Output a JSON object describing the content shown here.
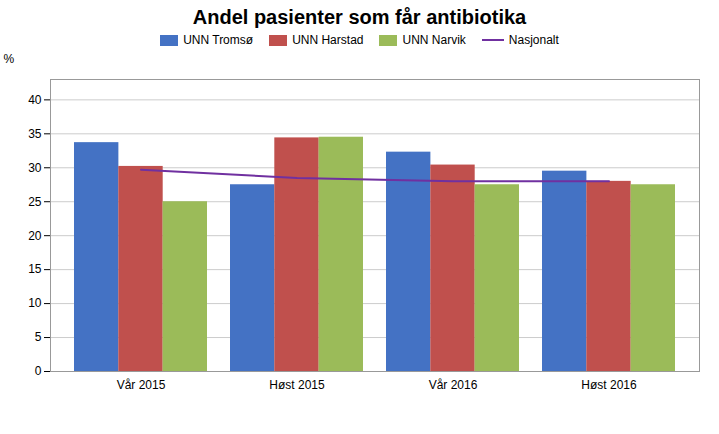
{
  "chart_data": {
    "type": "bar",
    "title": "Andel pasienter som får antibiotika",
    "categories": [
      "Vår 2015",
      "Høst 2015",
      "Vår 2016",
      "Høst 2016"
    ],
    "series": [
      {
        "name": "UNN Tromsø",
        "color": "#4472C4",
        "values": [
          33.7,
          27.5,
          32.3,
          29.5
        ]
      },
      {
        "name": "UNN Harstad",
        "color": "#C0504D",
        "values": [
          30.2,
          34.4,
          30.4,
          28.0
        ]
      },
      {
        "name": "UNN Narvik",
        "color": "#9BBB59",
        "values": [
          25.0,
          34.5,
          27.5,
          27.5
        ]
      },
      {
        "name": "Nasjonalt",
        "type": "line",
        "color": "#7030A0",
        "values": [
          29.7,
          28.5,
          28.0,
          28.0
        ]
      }
    ],
    "ylabel": "%",
    "ylim": [
      0,
      43
    ],
    "yticks": [
      0,
      5,
      10,
      15,
      20,
      25,
      30,
      35,
      40
    ],
    "grid": true,
    "legend": "top"
  }
}
